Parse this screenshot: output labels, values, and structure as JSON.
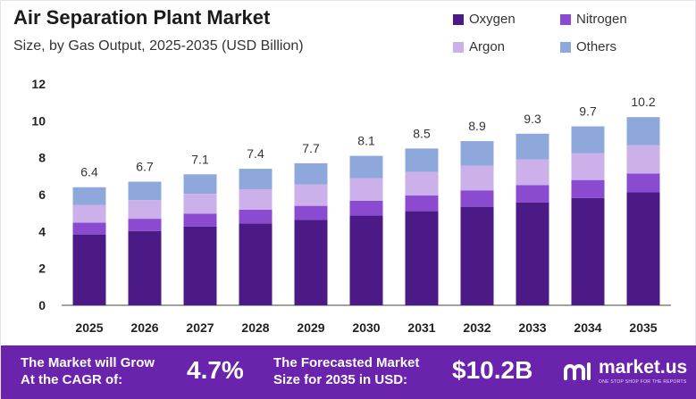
{
  "header": {
    "title": "Air Separation Plant Market",
    "subtitle": "Size, by Gas Output, 2025-2035 (USD Billion)"
  },
  "chart_data": {
    "type": "bar",
    "stacked": true,
    "categories": [
      "2025",
      "2026",
      "2027",
      "2028",
      "2029",
      "2030",
      "2031",
      "2032",
      "2033",
      "2034",
      "2035"
    ],
    "totals": [
      6.4,
      6.7,
      7.1,
      7.4,
      7.7,
      8.1,
      8.5,
      8.9,
      9.3,
      9.7,
      10.2
    ],
    "total_labels": [
      "6.4",
      "6.7",
      "7.1",
      "7.4",
      "7.7",
      "8.1",
      "8.5",
      "8.9",
      "9.3",
      "9.7",
      "10.2"
    ],
    "series": [
      {
        "name": "Oxygen",
        "color": "#4b1a86",
        "values": [
          3.84,
          4.02,
          4.26,
          4.44,
          4.62,
          4.86,
          5.1,
          5.34,
          5.58,
          5.82,
          6.12
        ]
      },
      {
        "name": "Nitrogen",
        "color": "#8a4bd0",
        "values": [
          0.64,
          0.67,
          0.71,
          0.74,
          0.77,
          0.81,
          0.85,
          0.89,
          0.93,
          0.97,
          1.02
        ]
      },
      {
        "name": "Argon",
        "color": "#cbb0ea",
        "values": [
          0.96,
          1.01,
          1.07,
          1.11,
          1.16,
          1.22,
          1.28,
          1.34,
          1.4,
          1.46,
          1.53
        ]
      },
      {
        "name": "Others",
        "color": "#8fa8dc",
        "values": [
          0.96,
          1.0,
          1.06,
          1.11,
          1.15,
          1.21,
          1.27,
          1.33,
          1.39,
          1.45,
          1.53
        ]
      }
    ],
    "yticks": [
      "0",
      "2",
      "4",
      "6",
      "8",
      "10",
      "12"
    ],
    "ylim": [
      0,
      12
    ],
    "legend_position": "top-right",
    "grid": false
  },
  "footer": {
    "cagr_label_line1": "The Market will Grow",
    "cagr_label_line2": "At the CAGR of:",
    "cagr_value": "4.7%",
    "forecast_label_line1": "The Forecasted Market",
    "forecast_label_line2": "Size for 2035 in USD:",
    "forecast_value": "$10.2B",
    "brand": "market.us",
    "brand_tagline": "ONE STOP SHOP FOR THE REPORTS",
    "background": "#6a23ad"
  }
}
